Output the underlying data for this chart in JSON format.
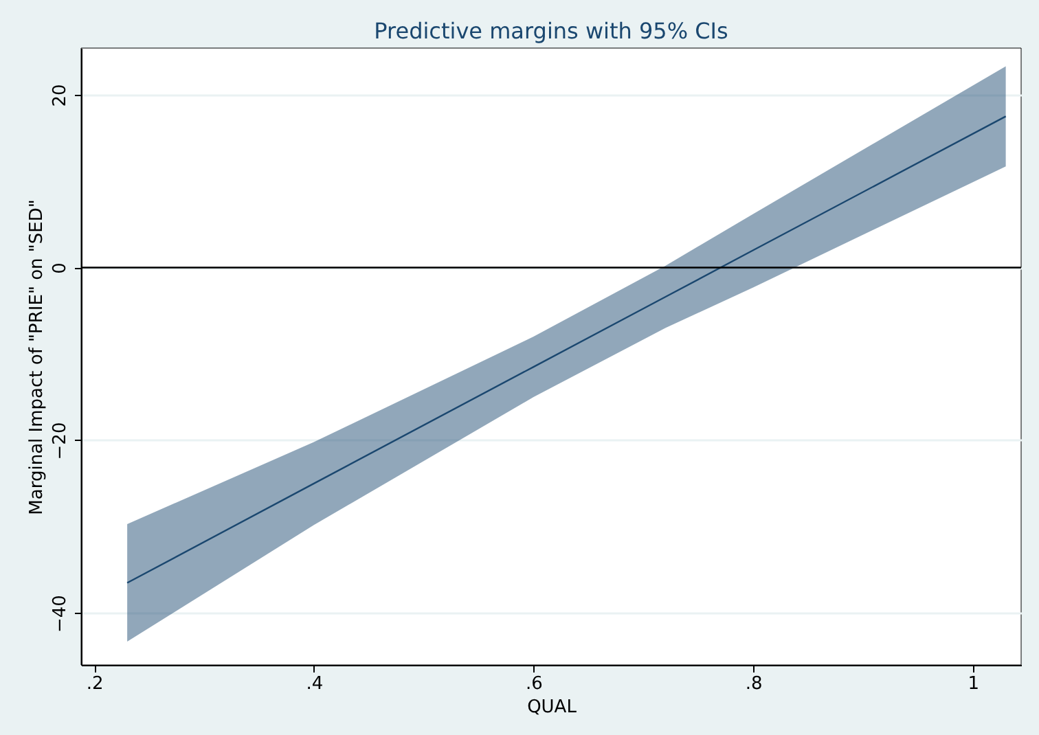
{
  "chart_data": {
    "type": "line",
    "title": "Predictive margins with 95% CIs",
    "xlabel": "QUAL",
    "ylabel": "Marginal Impact of \"PRIE\" on \"SED\"",
    "x": [
      0.23,
      0.4,
      0.6,
      0.72,
      0.8,
      1.03
    ],
    "series": [
      {
        "color": "#1a476f",
        "values": [
          -36.5,
          -25.0,
          -11.5,
          -3.4,
          2.0,
          17.5
        ],
        "lower": [
          -43.3,
          -29.8,
          -15.0,
          -7.0,
          -2.3,
          11.7
        ],
        "upper": [
          -29.7,
          -20.2,
          -8.0,
          0.2,
          6.2,
          23.3
        ]
      }
    ],
    "xlim": [
      0.188,
      1.044
    ],
    "ylim": [
      -46,
      25.4
    ],
    "xticks": [
      {
        "value": 0.2,
        "label": ".2"
      },
      {
        "value": 0.4,
        "label": ".4"
      },
      {
        "value": 0.6,
        "label": ".6"
      },
      {
        "value": 0.8,
        "label": ".8"
      },
      {
        "value": 1,
        "label": "1"
      }
    ],
    "yticks": [
      -40,
      -20,
      0,
      20
    ],
    "ref_lines": [
      {
        "axis": "y",
        "value": 0,
        "color": "#000000"
      }
    ],
    "grid": "y",
    "legend": false,
    "marker": "none",
    "line_style": "solid"
  }
}
